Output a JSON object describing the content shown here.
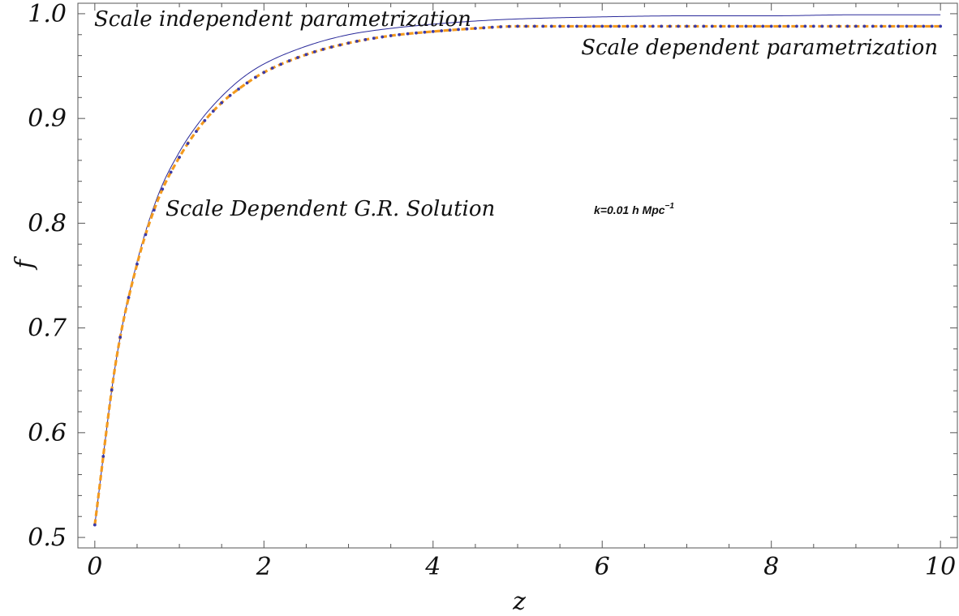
{
  "chart_data": {
    "type": "line",
    "title": "",
    "xlabel": "z",
    "ylabel": "f",
    "xlim": [
      -0.2,
      10.2
    ],
    "ylim": [
      0.49,
      1.01
    ],
    "grid": false,
    "x_ticks": [
      "0",
      "2",
      "4",
      "6",
      "8",
      "10"
    ],
    "y_ticks": [
      "0.5",
      "0.6",
      "0.7",
      "0.8",
      "0.9",
      "1.0"
    ],
    "x_tick_values": [
      0,
      2,
      4,
      6,
      8,
      10
    ],
    "y_tick_values": [
      0.5,
      0.6,
      0.7,
      0.8,
      0.9,
      1.0
    ],
    "x": [
      0,
      0.25,
      0.5,
      0.75,
      1,
      1.25,
      1.5,
      1.75,
      2,
      2.5,
      3,
      3.5,
      4,
      4.5,
      5,
      6,
      7,
      8,
      9,
      10
    ],
    "series": [
      {
        "name": "Scale independent parametrization",
        "color": "#2a2a9a",
        "style": "solid-thin",
        "values": [
          0.512,
          0.668,
          0.763,
          0.827,
          0.868,
          0.898,
          0.921,
          0.939,
          0.952,
          0.969,
          0.98,
          0.986,
          0.99,
          0.993,
          0.995,
          0.997,
          0.998,
          0.998,
          0.999,
          0.999
        ]
      },
      {
        "name": "Scale dependent parametrization",
        "color": "#f39a1e",
        "style": "dashed-thick",
        "values": [
          0.512,
          0.668,
          0.761,
          0.823,
          0.863,
          0.893,
          0.915,
          0.931,
          0.944,
          0.961,
          0.972,
          0.979,
          0.983,
          0.986,
          0.988,
          0.988,
          0.988,
          0.988,
          0.988,
          0.988
        ]
      },
      {
        "name": "Scale Dependent G.R. Solution",
        "color": "#3a3aa8",
        "style": "dots",
        "values": [
          0.512,
          0.668,
          0.761,
          0.823,
          0.863,
          0.893,
          0.915,
          0.931,
          0.944,
          0.961,
          0.972,
          0.979,
          0.983,
          0.986,
          0.988,
          0.988,
          0.988,
          0.988,
          0.988,
          0.988
        ]
      }
    ],
    "annotations": {
      "independent": "Scale independent parametrization",
      "dependent": "Scale dependent parametrization",
      "gr_solution": "Scale Dependent G.R. Solution",
      "k_text": "k=0.01 h Mpc",
      "k_sup": "−1"
    },
    "colors": {
      "axis": "#555555",
      "independent": "#2a2a9a",
      "dependent": "#f39a1e",
      "gr_dots": "#3a3aa8"
    }
  }
}
